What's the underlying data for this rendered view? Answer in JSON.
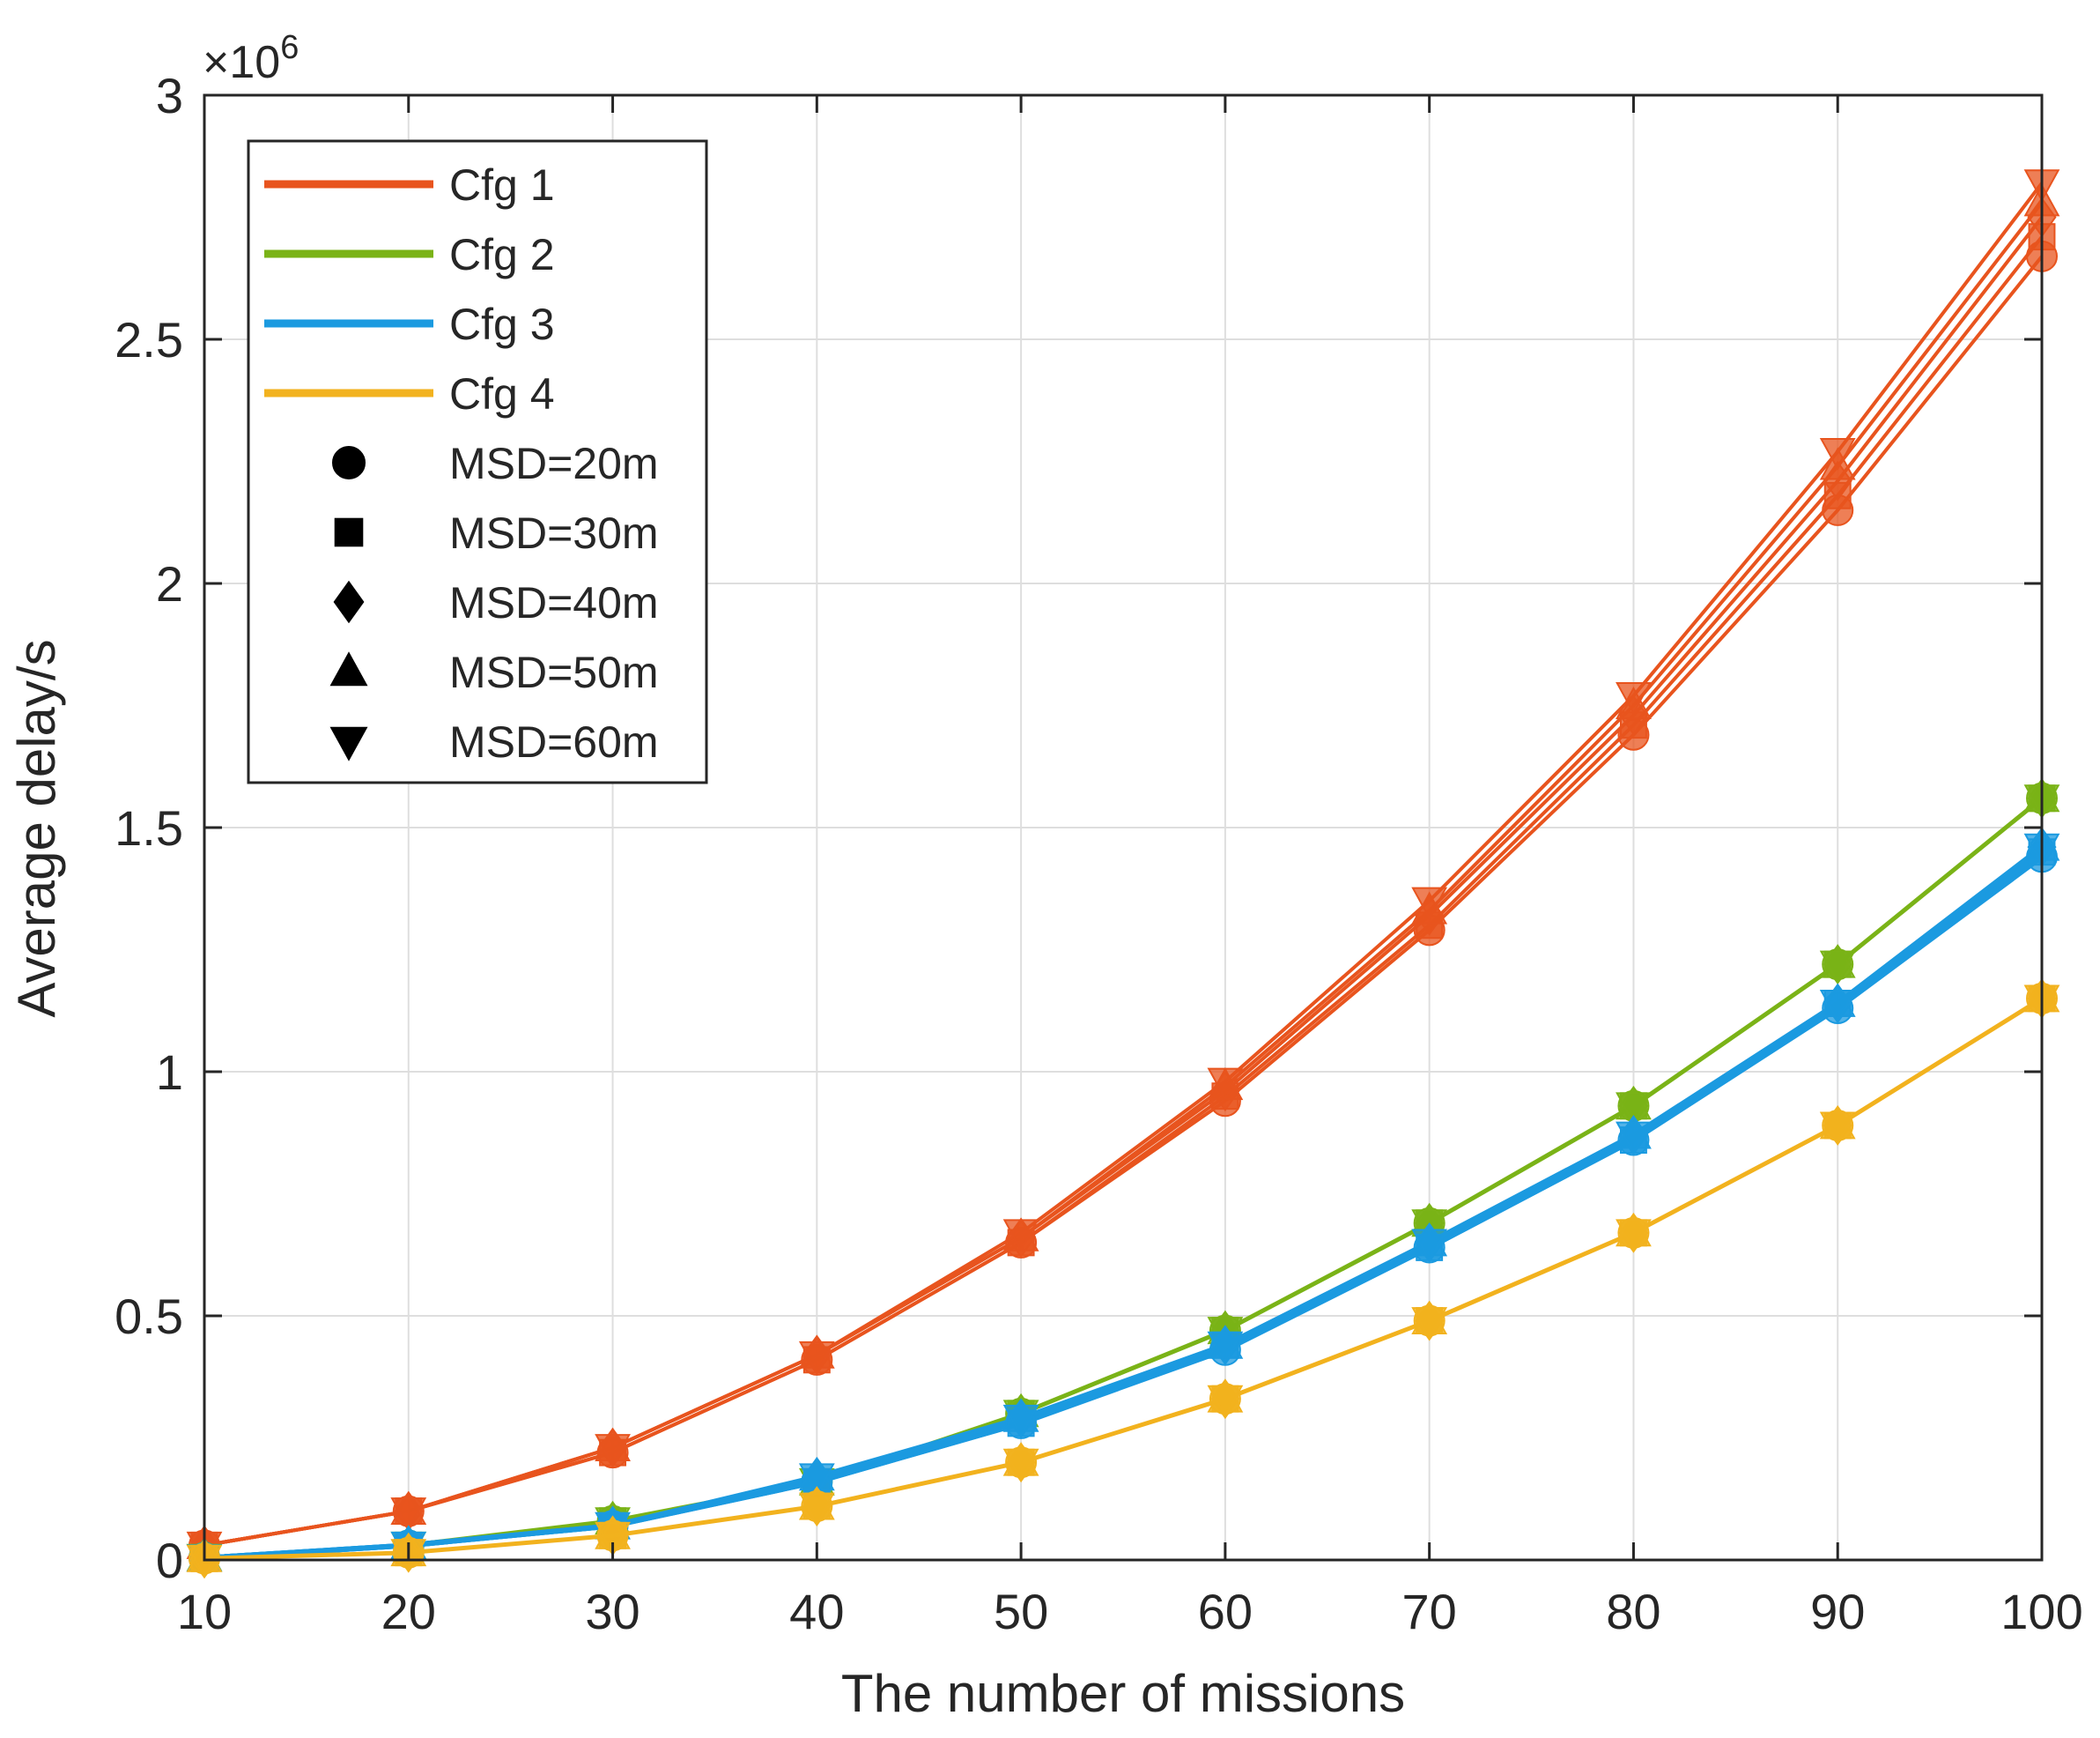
{
  "chart_data": {
    "type": "line",
    "xlabel": "The number of missions",
    "ylabel": "Average delay/s",
    "y_multiplier": "×10",
    "y_multiplier_exponent": "6",
    "xlim": [
      10,
      100
    ],
    "ylim": [
      0,
      3
    ],
    "x_ticks": [
      "10",
      "20",
      "30",
      "40",
      "50",
      "60",
      "70",
      "80",
      "90",
      "100"
    ],
    "y_ticks": [
      "0",
      "0.5",
      "1",
      "1.5",
      "2",
      "2.5",
      "3"
    ],
    "grid": true,
    "legend_position": "top-left",
    "x": [
      10,
      20,
      30,
      40,
      50,
      60,
      70,
      80,
      90,
      100
    ],
    "config_series": [
      {
        "name": "Cfg 1",
        "color": "#e8541e",
        "curves": [
          [
            0.03,
            0.1,
            0.22,
            0.41,
            0.65,
            0.94,
            1.29,
            1.69,
            2.15,
            2.67
          ],
          [
            0.03,
            0.1,
            0.22,
            0.41,
            0.65,
            0.95,
            1.3,
            1.71,
            2.18,
            2.71
          ],
          [
            0.03,
            0.1,
            0.23,
            0.42,
            0.66,
            0.96,
            1.32,
            1.73,
            2.21,
            2.75
          ],
          [
            0.03,
            0.1,
            0.23,
            0.42,
            0.66,
            0.97,
            1.33,
            1.75,
            2.24,
            2.78
          ],
          [
            0.03,
            0.1,
            0.23,
            0.42,
            0.67,
            0.98,
            1.35,
            1.77,
            2.27,
            2.82
          ]
        ]
      },
      {
        "name": "Cfg 2",
        "color": "#7ab317",
        "curves": [
          [
            0.005,
            0.03,
            0.08,
            0.16,
            0.3,
            0.47,
            0.69,
            0.93,
            1.22,
            1.56
          ]
        ]
      },
      {
        "name": "Cfg 3",
        "color": "#1b9ae0",
        "curves": [
          [
            0.004,
            0.03,
            0.07,
            0.16,
            0.28,
            0.43,
            0.64,
            0.86,
            1.13,
            1.44
          ],
          [
            0.004,
            0.03,
            0.07,
            0.16,
            0.28,
            0.44,
            0.64,
            0.86,
            1.14,
            1.45
          ],
          [
            0.004,
            0.03,
            0.07,
            0.17,
            0.29,
            0.44,
            0.65,
            0.87,
            1.14,
            1.46
          ]
        ]
      },
      {
        "name": "Cfg 4",
        "color": "#f2b21e",
        "curves": [
          [
            0.003,
            0.015,
            0.05,
            0.11,
            0.2,
            0.33,
            0.49,
            0.67,
            0.89,
            1.15
          ]
        ]
      }
    ],
    "legend": [
      {
        "label": "Cfg 1",
        "kind": "line",
        "color": "#e8541e"
      },
      {
        "label": "Cfg 2",
        "kind": "line",
        "color": "#7ab317"
      },
      {
        "label": "Cfg 3",
        "kind": "line",
        "color": "#1b9ae0"
      },
      {
        "label": "Cfg 4",
        "kind": "line",
        "color": "#f2b21e"
      },
      {
        "label": "MSD=20m",
        "kind": "marker",
        "marker": "circle"
      },
      {
        "label": "MSD=30m",
        "kind": "marker",
        "marker": "square"
      },
      {
        "label": "MSD=40m",
        "kind": "marker",
        "marker": "diamond"
      },
      {
        "label": "MSD=50m",
        "kind": "marker",
        "marker": "triangle-up"
      },
      {
        "label": "MSD=60m",
        "kind": "marker",
        "marker": "triangle-down"
      }
    ]
  }
}
